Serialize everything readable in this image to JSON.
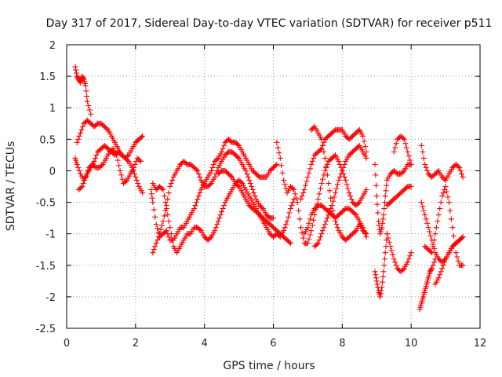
{
  "chart_data": {
    "type": "scatter",
    "title": "Day 317 of 2017, Sidereal Day-to-day VTEC variation (SDTVAR) for receiver p511",
    "xlabel": "GPS time / hours",
    "ylabel": "SDTVAR / TECUs",
    "xlim": [
      0,
      12
    ],
    "ylim": [
      -2.5,
      2
    ],
    "xticks": [
      0,
      2,
      4,
      6,
      8,
      10,
      12
    ],
    "xtick_labels": [
      "0",
      "2",
      "4",
      "6",
      "8",
      "10",
      "12"
    ],
    "yticks": [
      2,
      1.5,
      1,
      0.5,
      0,
      -0.5,
      -1,
      -1.5,
      -2,
      -2.5
    ],
    "ytick_labels": [
      "2",
      "1.5",
      "1",
      "0.5",
      "0",
      "-0.5",
      "-1",
      "-1.5",
      "-2",
      "-2.5"
    ],
    "grid": true,
    "marker": "+",
    "color": "#ff0000",
    "series": [
      {
        "name": "s1",
        "x": [
          0.25,
          0.3,
          0.35,
          0.4,
          0.45,
          0.5,
          0.55,
          0.6,
          0.7
        ],
        "y": [
          1.65,
          1.5,
          1.45,
          1.4,
          1.5,
          1.45,
          1.35,
          1.1,
          0.9
        ]
      },
      {
        "name": "s2",
        "x": [
          0.3,
          0.4,
          0.5,
          0.6,
          0.7,
          0.8,
          0.9,
          1.0,
          1.1,
          1.2,
          1.3,
          1.4,
          1.5,
          1.6,
          1.7,
          1.8,
          1.9,
          2.0,
          2.1,
          2.2
        ],
        "y": [
          0.45,
          0.6,
          0.75,
          0.8,
          0.75,
          0.7,
          0.75,
          0.75,
          0.7,
          0.65,
          0.55,
          0.45,
          0.35,
          0.25,
          0.2,
          0.25,
          0.35,
          0.45,
          0.5,
          0.55
        ]
      },
      {
        "name": "s3",
        "x": [
          0.25,
          0.3,
          0.4,
          0.5,
          0.6,
          0.7,
          0.8,
          0.9,
          1.0,
          1.1,
          1.2,
          1.3,
          1.4,
          1.5,
          1.6,
          1.7,
          1.8,
          1.9,
          2.0,
          2.1,
          2.2
        ],
        "y": [
          0.2,
          0.1,
          -0.05,
          -0.15,
          -0.05,
          0.05,
          0.15,
          0.3,
          0.35,
          0.4,
          0.35,
          0.3,
          0.25,
          0.3,
          0.25,
          0.2,
          0.15,
          0.05,
          -0.1,
          -0.25,
          -0.35
        ]
      },
      {
        "name": "s4",
        "x": [
          0.35,
          0.45,
          0.55,
          0.65,
          0.75,
          0.85,
          0.95,
          1.05,
          1.15,
          1.25,
          1.35,
          1.45,
          1.55,
          1.65,
          1.75,
          1.85,
          1.95,
          2.05,
          2.15
        ],
        "y": [
          -0.3,
          -0.25,
          -0.1,
          0.05,
          0.1,
          0.05,
          0.05,
          0.1,
          0.2,
          0.3,
          0.35,
          0.25,
          0.0,
          -0.2,
          -0.15,
          -0.05,
          0.05,
          0.2,
          0.15
        ]
      },
      {
        "name": "s5",
        "x": [
          2.45,
          2.5,
          2.6,
          2.7,
          2.8,
          2.9,
          3.0,
          3.1,
          3.2,
          3.3,
          3.4,
          3.5,
          3.6,
          3.7,
          3.8,
          3.9,
          4.0,
          4.1,
          4.2,
          4.3,
          4.4,
          4.5,
          4.6,
          4.7,
          4.8,
          4.9,
          5.0,
          5.1,
          5.2,
          5.3,
          5.4,
          5.5,
          5.6,
          5.7,
          5.8,
          5.9,
          6.0,
          6.1
        ],
        "y": [
          -0.3,
          -0.5,
          -0.85,
          -1.05,
          -1.0,
          -0.95,
          -1.1,
          -1.1,
          -1.0,
          -0.9,
          -0.9,
          -0.8,
          -0.7,
          -0.6,
          -0.45,
          -0.3,
          -0.2,
          -0.1,
          0.0,
          0.15,
          0.2,
          0.3,
          0.45,
          0.5,
          0.45,
          0.45,
          0.4,
          0.3,
          0.2,
          0.1,
          0.0,
          -0.05,
          -0.1,
          -0.1,
          -0.1,
          0.0,
          0.05,
          0.1
        ]
      },
      {
        "name": "s6",
        "x": [
          2.5,
          2.6,
          2.7,
          2.8,
          2.9,
          3.0,
          3.1,
          3.2,
          3.3,
          3.4,
          3.5,
          3.6,
          3.7,
          3.8,
          3.9,
          4.0,
          4.1,
          4.2,
          4.3,
          4.4,
          4.5,
          4.6,
          4.7,
          4.8,
          4.9,
          5.0,
          5.1,
          5.2,
          5.3,
          5.4,
          5.5,
          5.6,
          5.7,
          5.8,
          5.9,
          6.0
        ],
        "y": [
          -1.3,
          -1.15,
          -1.0,
          -0.8,
          -0.55,
          -0.25,
          -0.1,
          0.0,
          0.1,
          0.15,
          0.1,
          0.1,
          0.05,
          0.0,
          -0.15,
          -0.25,
          -0.25,
          -0.2,
          -0.1,
          0.05,
          0.15,
          0.25,
          0.3,
          0.3,
          0.25,
          0.2,
          0.1,
          0.0,
          -0.15,
          -0.3,
          -0.45,
          -0.55,
          -0.6,
          -0.7,
          -0.75,
          -0.75
        ]
      },
      {
        "name": "s7",
        "x": [
          2.5,
          2.6,
          2.7,
          2.8,
          2.9,
          3.0,
          3.1,
          3.2,
          3.3,
          3.4,
          3.5,
          3.6,
          3.7,
          3.8,
          3.9,
          4.0,
          4.1,
          4.2,
          4.3,
          4.4,
          4.5,
          4.6,
          4.7,
          4.8,
          4.9,
          5.0,
          5.1,
          5.2,
          5.3,
          5.4,
          5.5,
          5.6,
          5.7,
          5.8,
          5.9,
          6.0,
          6.1,
          6.2,
          6.3,
          6.4,
          6.5,
          6.6
        ],
        "y": [
          -0.2,
          -0.3,
          -0.25,
          -0.3,
          -0.6,
          -0.9,
          -1.2,
          -1.3,
          -1.2,
          -1.1,
          -1.0,
          -1.0,
          -0.9,
          -0.9,
          -0.95,
          -1.05,
          -1.1,
          -1.05,
          -0.95,
          -0.8,
          -0.65,
          -0.5,
          -0.4,
          -0.3,
          -0.2,
          -0.15,
          -0.2,
          -0.3,
          -0.4,
          -0.5,
          -0.6,
          -0.7,
          -0.8,
          -0.9,
          -1.0,
          -1.05,
          -1.0,
          -1.05,
          -0.95,
          -0.8,
          -0.6,
          -0.45
        ]
      },
      {
        "name": "s8",
        "x": [
          4.4,
          4.5,
          4.6,
          4.7,
          4.8,
          4.9,
          5.0,
          5.1,
          5.2,
          5.3,
          5.4,
          5.5,
          5.6,
          5.7,
          5.8,
          5.9,
          6.0,
          6.1,
          6.2,
          6.3,
          6.4,
          6.5
        ],
        "y": [
          -0.05,
          0.0,
          0.0,
          -0.05,
          -0.1,
          -0.2,
          -0.25,
          -0.35,
          -0.45,
          -0.55,
          -0.6,
          -0.65,
          -0.7,
          -0.75,
          -0.8,
          -0.85,
          -0.9,
          -0.95,
          -1.0,
          -1.05,
          -1.1,
          -1.15
        ]
      },
      {
        "name": "s9",
        "x": [
          6.1,
          6.2,
          6.3,
          6.4,
          6.5,
          6.6,
          6.7,
          6.8,
          6.9,
          7.0,
          7.1,
          7.2,
          7.3,
          7.4,
          7.5,
          7.6,
          7.7,
          7.8,
          7.9,
          8.0,
          8.1,
          8.2,
          8.3,
          8.4,
          8.5,
          8.6,
          8.7
        ],
        "y": [
          0.45,
          0.2,
          -0.15,
          -0.35,
          -0.25,
          -0.3,
          -0.5,
          -0.9,
          -1.15,
          -1.15,
          -0.95,
          -0.7,
          -0.45,
          -0.2,
          0.0,
          0.15,
          0.2,
          0.25,
          0.15,
          0.0,
          -0.15,
          -0.35,
          -0.5,
          -0.55,
          -0.5,
          -0.4,
          -0.3
        ]
      },
      {
        "name": "s10",
        "x": [
          6.8,
          6.9,
          7.0,
          7.1,
          7.2,
          7.3,
          7.4,
          7.5,
          7.6,
          7.7,
          7.8,
          7.9,
          8.0,
          8.1,
          8.2,
          8.3,
          8.4,
          8.5,
          8.6,
          8.7
        ],
        "y": [
          -0.45,
          -0.3,
          -0.1,
          0.1,
          0.25,
          0.3,
          0.35,
          0.5,
          0.55,
          0.6,
          0.65,
          0.65,
          0.65,
          0.55,
          0.5,
          0.55,
          0.6,
          0.65,
          0.55,
          0.3
        ]
      },
      {
        "name": "s11",
        "x": [
          7.2,
          7.3,
          7.4,
          7.5,
          7.6,
          7.7,
          7.8,
          7.9,
          8.0,
          8.1,
          8.2,
          8.3,
          8.4,
          8.5,
          8.6,
          8.7
        ],
        "y": [
          -1.2,
          -1.15,
          -1.0,
          -0.85,
          -0.7,
          -0.55,
          -0.35,
          -0.15,
          0.0,
          0.15,
          0.25,
          0.3,
          0.35,
          0.4,
          0.3,
          0.2
        ]
      },
      {
        "name": "s12",
        "x": [
          7.1,
          7.2,
          7.3,
          7.4,
          7.5,
          7.6,
          7.7,
          7.8,
          7.9,
          8.0,
          8.1,
          8.2,
          8.3,
          8.4,
          8.5,
          8.6,
          8.7
        ],
        "y": [
          0.65,
          0.7,
          0.6,
          0.5,
          0.2,
          -0.2,
          -0.55,
          -0.8,
          -0.95,
          -1.05,
          -1.1,
          -1.05,
          -1.0,
          -0.95,
          -0.85,
          -0.95,
          -1.0
        ]
      },
      {
        "name": "s13",
        "x": [
          6.9,
          7.0,
          7.1,
          7.2,
          7.3,
          7.4,
          7.5,
          7.6,
          7.7,
          7.8,
          7.9,
          8.0,
          8.1,
          8.2,
          8.3,
          8.4,
          8.5,
          8.6,
          8.7
        ],
        "y": [
          -1.0,
          -0.9,
          -0.7,
          -0.6,
          -0.55,
          -0.55,
          -0.6,
          -0.65,
          -0.7,
          -0.75,
          -0.7,
          -0.65,
          -0.6,
          -0.6,
          -0.65,
          -0.7,
          -0.8,
          -0.9,
          -1.05
        ]
      },
      {
        "name": "s14",
        "x": [
          8.95,
          9.0,
          9.05,
          9.1,
          9.15,
          9.2,
          9.25,
          9.3,
          9.4,
          9.5,
          9.6,
          9.7,
          9.8,
          9.9,
          10.0
        ],
        "y": [
          0.1,
          -0.4,
          -0.8,
          -1.0,
          -0.9,
          -0.7,
          -0.4,
          -0.15,
          -0.05,
          0.0,
          -0.05,
          -0.05,
          0.0,
          0.1,
          0.1
        ]
      },
      {
        "name": "s15",
        "x": [
          8.95,
          9.0,
          9.05,
          9.1,
          9.15,
          9.2,
          9.25,
          9.3
        ],
        "y": [
          -1.6,
          -1.75,
          -1.9,
          -2.0,
          -1.85,
          -1.6,
          -1.3,
          -1.0
        ]
      },
      {
        "name": "s16",
        "x": [
          9.3,
          9.4,
          9.5,
          9.6,
          9.7,
          9.8,
          9.9,
          10.0
        ],
        "y": [
          -0.55,
          -0.5,
          -0.45,
          -0.4,
          -0.35,
          -0.3,
          -0.25,
          -0.25
        ]
      },
      {
        "name": "s17",
        "x": [
          9.3,
          9.4,
          9.5,
          9.6,
          9.7,
          9.8,
          9.9,
          10.0
        ],
        "y": [
          -1.0,
          -1.2,
          -1.4,
          -1.55,
          -1.6,
          -1.55,
          -1.45,
          -1.3
        ]
      },
      {
        "name": "s18",
        "x": [
          9.5,
          9.6,
          9.7,
          9.8,
          9.9,
          10.0
        ],
        "y": [
          0.3,
          0.5,
          0.55,
          0.5,
          0.3,
          0.1
        ]
      },
      {
        "name": "s19",
        "x": [
          10.25,
          10.3,
          10.35,
          10.4,
          10.45,
          10.5,
          10.55,
          10.6,
          10.7
        ],
        "y": [
          -2.2,
          -2.1,
          -2.0,
          -1.9,
          -1.8,
          -1.7,
          -1.6,
          -1.55,
          -1.4
        ]
      },
      {
        "name": "s20",
        "x": [
          10.3,
          10.4,
          10.5,
          10.6,
          10.7,
          10.8,
          10.9,
          11.0,
          11.1,
          11.2,
          11.3,
          11.4,
          11.5
        ],
        "y": [
          0.4,
          0.1,
          -0.05,
          -0.1,
          -0.05,
          0.0,
          -0.1,
          -0.15,
          -0.05,
          0.05,
          0.1,
          0.05,
          -0.1
        ]
      },
      {
        "name": "s21",
        "x": [
          10.3,
          10.4,
          10.5,
          10.6,
          10.7,
          10.8,
          10.9,
          11.0,
          11.1,
          11.2,
          11.3,
          11.4,
          11.5
        ],
        "y": [
          -0.5,
          -0.7,
          -0.9,
          -1.1,
          -1.3,
          -1.4,
          -1.45,
          -1.4,
          -1.3,
          -1.2,
          -1.15,
          -1.1,
          -1.05
        ]
      },
      {
        "name": "s22",
        "x": [
          10.4,
          10.5,
          10.6,
          10.7,
          10.8,
          10.9,
          11.0,
          11.1,
          11.2,
          11.3,
          11.4,
          11.5
        ],
        "y": [
          -1.2,
          -1.25,
          -1.3,
          -1.0,
          -0.7,
          -0.4,
          -0.25,
          -0.5,
          -0.9,
          -1.3,
          -1.5,
          -1.5
        ]
      },
      {
        "name": "s23",
        "x": [
          10.7,
          10.8,
          10.9,
          11.0,
          11.1,
          11.2,
          11.3,
          11.4,
          11.5
        ],
        "y": [
          -1.8,
          -1.7,
          -1.55,
          -1.4,
          -1.3,
          -1.2,
          -1.15,
          -1.1,
          -1.05
        ]
      }
    ]
  }
}
